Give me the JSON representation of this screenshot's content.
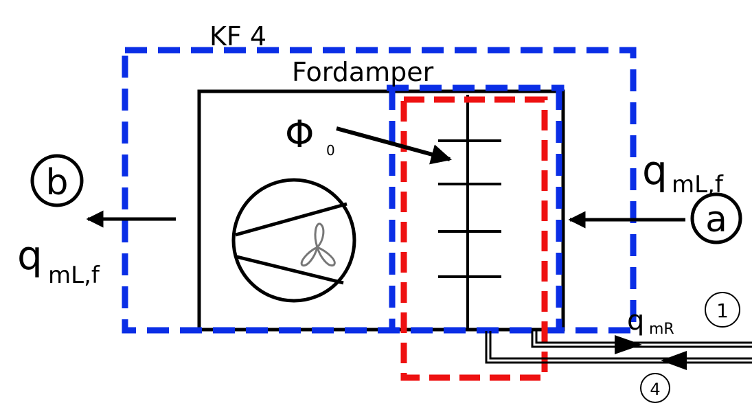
{
  "labels": {
    "cv_name": "KF 4",
    "evaporator": "Fordamper",
    "heat_symbol": "Φ",
    "heat_sub": "0",
    "air_flow_q": "q",
    "air_flow_sub": "mL,f",
    "refrigerant_q": "q",
    "refrigerant_sub": "mR",
    "state_a": "a",
    "state_b": "b",
    "state_1": "1",
    "state_4": "4"
  },
  "colors": {
    "outer_boundary": "#0a2ee6",
    "inner_boundary": "#ee1111",
    "lines": "#000000"
  }
}
